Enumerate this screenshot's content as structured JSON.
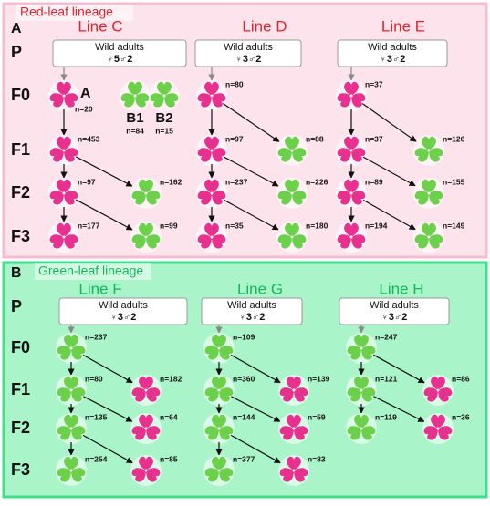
{
  "panels": [
    {
      "label": "A",
      "lineage": "Red-leaf lineage",
      "lineage_color": "#e8202a",
      "fill": "#fde4ec",
      "border": "#f6bcd0",
      "generations": [
        "P",
        "F0",
        "F1",
        "F2",
        "F3"
      ],
      "lines": [
        {
          "title": "Line C",
          "box": {
            "title": "Wild adults",
            "sex": "♀5♂2"
          },
          "rows": [
            [
              {
                "color": "#e8318f",
                "tag": "A",
                "n": "n=20"
              },
              {
                "color": "#6cd04a",
                "tag": "B1",
                "n": "n=84"
              },
              {
                "color": "#6cd04a",
                "tag": "B2",
                "n": "n=15"
              }
            ],
            [
              {
                "color": "#e8318f",
                "n": "n=453"
              }
            ],
            [
              {
                "color": "#e8318f",
                "n": "n=97"
              },
              {
                "color": "#6cd04a",
                "n": "n=162"
              }
            ],
            [
              {
                "color": "#e8318f",
                "n": "n=177"
              },
              {
                "color": "#6cd04a",
                "n": "n=99"
              }
            ]
          ]
        },
        {
          "title": "Line D",
          "box": {
            "title": "Wild adults",
            "sex": "♀3♂2"
          },
          "rows": [
            [
              {
                "color": "#e8318f",
                "n": "n=80"
              }
            ],
            [
              {
                "color": "#e8318f",
                "n": "n=97"
              },
              {
                "color": "#6cd04a",
                "n": "n=88"
              }
            ],
            [
              {
                "color": "#e8318f",
                "n": "n=237"
              },
              {
                "color": "#6cd04a",
                "n": "n=226"
              }
            ],
            [
              {
                "color": "#e8318f",
                "n": "n=35"
              },
              {
                "color": "#6cd04a",
                "n": "n=180"
              }
            ]
          ]
        },
        {
          "title": "Line E",
          "box": {
            "title": "Wild adults",
            "sex": "♀3♂2"
          },
          "rows": [
            [
              {
                "color": "#e8318f",
                "n": "n=37"
              }
            ],
            [
              {
                "color": "#e8318f",
                "n": "n=37"
              },
              {
                "color": "#6cd04a",
                "n": "n=126"
              }
            ],
            [
              {
                "color": "#e8318f",
                "n": "n=89"
              },
              {
                "color": "#6cd04a",
                "n": "n=155"
              }
            ],
            [
              {
                "color": "#e8318f",
                "n": "n=194"
              },
              {
                "color": "#6cd04a",
                "n": "n=149"
              }
            ]
          ]
        }
      ]
    },
    {
      "label": "B",
      "lineage": "Green-leaf lineage",
      "lineage_color": "#14b85a",
      "fill": "#a9f4c9",
      "border": "#3fe08c",
      "generations": [
        "P",
        "F0",
        "F1",
        "F2",
        "F3"
      ],
      "lines": [
        {
          "title": "Line F",
          "box": {
            "title": "Wild adults",
            "sex": "♀3♂2"
          },
          "rows": [
            [
              {
                "color": "#6cd04a",
                "n": "n=237"
              }
            ],
            [
              {
                "color": "#6cd04a",
                "n": "n=80"
              },
              {
                "color": "#e8318f",
                "n": "n=182"
              }
            ],
            [
              {
                "color": "#6cd04a",
                "n": "n=135"
              },
              {
                "color": "#e8318f",
                "n": "n=64"
              }
            ],
            [
              {
                "color": "#6cd04a",
                "n": "n=254"
              },
              {
                "color": "#e8318f",
                "n": "n=85"
              }
            ]
          ]
        },
        {
          "title": "Line G",
          "box": {
            "title": "Wild adults",
            "sex": "♀3♂2"
          },
          "rows": [
            [
              {
                "color": "#6cd04a",
                "n": "n=109"
              }
            ],
            [
              {
                "color": "#6cd04a",
                "n": "n=360"
              },
              {
                "color": "#e8318f",
                "n": "n=139"
              }
            ],
            [
              {
                "color": "#6cd04a",
                "n": "n=144"
              },
              {
                "color": "#e8318f",
                "n": "n=59"
              }
            ],
            [
              {
                "color": "#6cd04a",
                "n": "n=377"
              },
              {
                "color": "#e8318f",
                "n": "n=83"
              }
            ]
          ]
        },
        {
          "title": "Line H",
          "box": {
            "title": "Wild adults",
            "sex": "♀3♂2"
          },
          "rows": [
            [
              {
                "color": "#6cd04a",
                "n": "n=247"
              }
            ],
            [
              {
                "color": "#6cd04a",
                "n": "n=121"
              },
              {
                "color": "#e8318f",
                "n": "n=86"
              }
            ],
            [
              {
                "color": "#6cd04a",
                "n": "n=119"
              },
              {
                "color": "#e8318f",
                "n": "n=36"
              }
            ]
          ]
        }
      ]
    }
  ]
}
